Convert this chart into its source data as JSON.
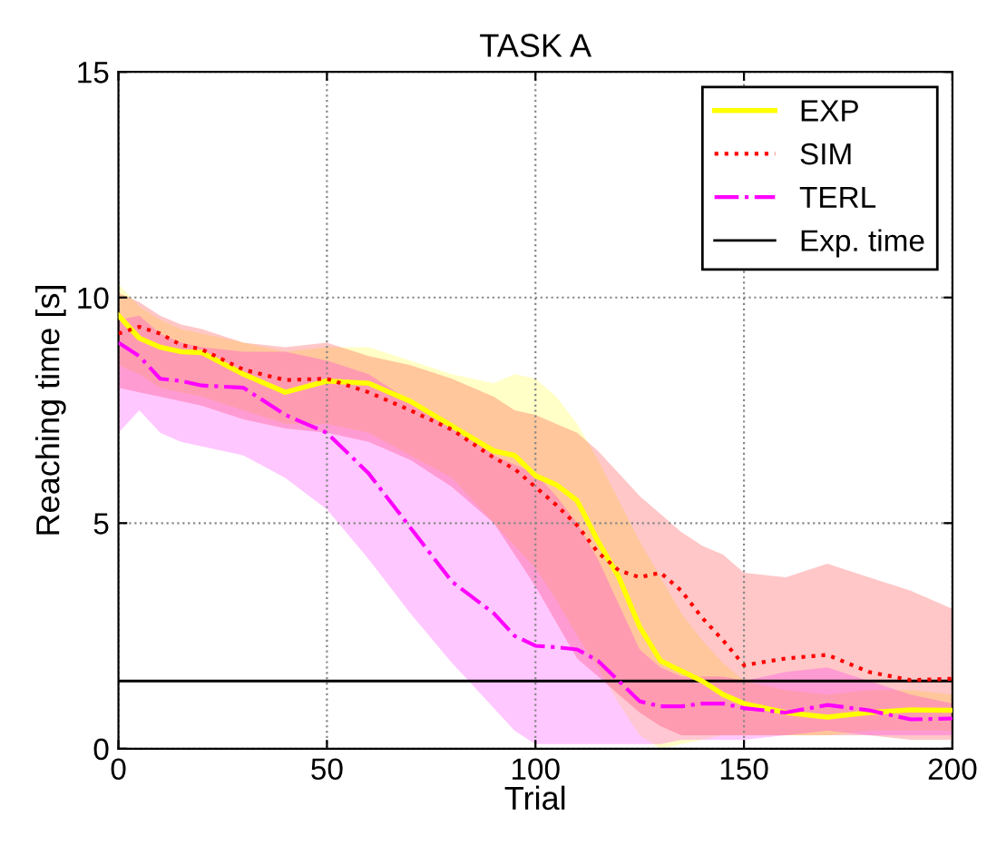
{
  "chart_data": {
    "type": "line",
    "title": "TASK A",
    "xlabel": "Trial",
    "ylabel": "Reaching time [s]",
    "xlim": [
      0,
      200
    ],
    "xticks": [
      0,
      50,
      100,
      150,
      200
    ],
    "ylim": [
      0,
      15
    ],
    "yticks": [
      0,
      5,
      10,
      15
    ],
    "grid": true,
    "legend": "top right",
    "x": [
      0,
      5,
      10,
      15,
      20,
      30,
      40,
      50,
      60,
      70,
      80,
      90,
      95,
      100,
      105,
      110,
      115,
      120,
      125,
      130,
      135,
      140,
      145,
      150,
      160,
      170,
      180,
      190,
      200
    ],
    "series": [
      {
        "name": "EXP",
        "color": "#ffff00",
        "line_style": "solid",
        "values": [
          9.6,
          9.1,
          8.9,
          8.8,
          8.78,
          8.3,
          7.9,
          8.15,
          8.1,
          7.7,
          7.15,
          6.6,
          6.5,
          6.05,
          5.85,
          5.5,
          4.6,
          3.8,
          2.7,
          1.95,
          1.72,
          1.5,
          1.2,
          1.0,
          0.8,
          0.7,
          0.8,
          0.86,
          0.85
        ],
        "lower": [
          8.5,
          8.3,
          8.0,
          7.9,
          7.8,
          7.5,
          7.2,
          7.2,
          7.0,
          6.5,
          6.0,
          5.0,
          4.5,
          4.0,
          3.3,
          2.5,
          1.8,
          1.0,
          0.3,
          0.0,
          0.1,
          0.2,
          0.3,
          0.3,
          0.3,
          0.3,
          0.4,
          0.4,
          0.4
        ],
        "upper": [
          10.3,
          9.8,
          9.5,
          9.3,
          9.2,
          9.0,
          8.8,
          8.9,
          8.9,
          8.6,
          8.3,
          8.1,
          8.3,
          8.2,
          7.8,
          7.2,
          6.4,
          5.5,
          4.6,
          3.8,
          3.0,
          2.4,
          1.9,
          1.5,
          1.3,
          1.2,
          1.3,
          1.3,
          1.2
        ]
      },
      {
        "name": "SIM",
        "color": "#ff0000",
        "line_style": "dotted",
        "values": [
          9.2,
          9.35,
          9.2,
          8.95,
          8.85,
          8.4,
          8.17,
          8.2,
          7.9,
          7.5,
          7.07,
          6.45,
          6.2,
          5.8,
          5.4,
          4.95,
          4.35,
          3.95,
          3.8,
          3.9,
          3.5,
          2.9,
          2.4,
          1.85,
          2.0,
          2.08,
          1.7,
          1.52,
          1.55
        ],
        "lower": [
          8.0,
          7.9,
          7.8,
          7.7,
          7.6,
          7.3,
          7.1,
          7.0,
          6.8,
          6.4,
          5.8,
          5.0,
          4.3,
          3.6,
          2.8,
          2.0,
          1.6,
          1.2,
          0.8,
          0.5,
          0.3,
          0.3,
          0.3,
          0.3,
          0.3,
          0.3,
          0.3,
          0.2,
          0.2
        ],
        "upper": [
          10.1,
          9.9,
          9.6,
          9.4,
          9.3,
          9.0,
          8.9,
          9.0,
          8.7,
          8.5,
          8.2,
          7.8,
          7.5,
          7.4,
          7.2,
          7.0,
          6.6,
          6.1,
          5.6,
          5.2,
          4.8,
          4.5,
          4.3,
          3.9,
          3.8,
          4.1,
          3.8,
          3.5,
          3.1
        ]
      },
      {
        "name": "TERL",
        "color": "#ff00ff",
        "line_style": "dashdot",
        "values": [
          9.0,
          8.7,
          8.2,
          8.15,
          8.05,
          8.0,
          7.4,
          7.0,
          6.1,
          4.9,
          3.7,
          3.0,
          2.5,
          2.28,
          2.25,
          2.2,
          1.95,
          1.5,
          1.05,
          0.94,
          0.94,
          1.0,
          1.0,
          0.9,
          0.8,
          0.97,
          0.85,
          0.65,
          0.67
        ],
        "lower": [
          7.0,
          7.5,
          7.0,
          6.8,
          6.7,
          6.5,
          6.0,
          5.3,
          4.2,
          3.0,
          1.9,
          0.9,
          0.4,
          0.1,
          0.1,
          0.1,
          0.1,
          0.1,
          0.1,
          0.1,
          0.2,
          0.2,
          0.2,
          0.2,
          0.3,
          0.4,
          0.3,
          0.3,
          0.3
        ],
        "upper": [
          9.5,
          9.6,
          9.2,
          9.0,
          8.9,
          8.8,
          8.8,
          8.6,
          8.3,
          7.7,
          7.2,
          6.5,
          6.3,
          6.1,
          5.6,
          5.0,
          4.2,
          3.2,
          2.2,
          1.8,
          1.6,
          1.6,
          1.6,
          1.5,
          1.7,
          1.8,
          1.5,
          1.2,
          1.0
        ]
      }
    ],
    "ref_lines": [
      {
        "axis": "y",
        "value": 1.5,
        "label": "Exp. time",
        "color": "#000000",
        "line_style": "solid"
      }
    ]
  }
}
